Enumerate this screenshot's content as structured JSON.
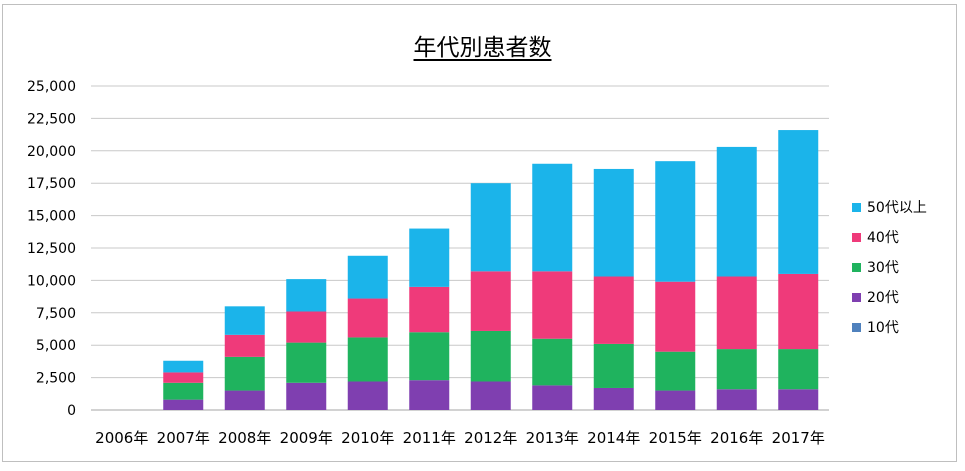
{
  "chart_data": {
    "type": "bar",
    "stacked": true,
    "title": "年代別患者数",
    "xlabel": "",
    "ylabel": "",
    "categories": [
      "2006年",
      "2007年",
      "2008年",
      "2009年",
      "2010年",
      "2011年",
      "2012年",
      "2013年",
      "2014年",
      "2015年",
      "2016年",
      "2017年"
    ],
    "ylim": [
      0,
      25000
    ],
    "yticks": [
      "0",
      "2,500",
      "5,000",
      "7,500",
      "10,000",
      "12,500",
      "15,000",
      "17,500",
      "20,000",
      "22,500",
      "25,000"
    ],
    "grid": true,
    "legend_position": "right",
    "series": [
      {
        "name": "10代",
        "color": "#4f81bd",
        "values": [
          0,
          0,
          0,
          0,
          0,
          0,
          0,
          0,
          0,
          0,
          0,
          0
        ]
      },
      {
        "name": "20代",
        "color": "#7f3fb0",
        "values": [
          0,
          800,
          1500,
          2100,
          2200,
          2300,
          2200,
          1900,
          1700,
          1500,
          1600,
          1600
        ]
      },
      {
        "name": "30代",
        "color": "#1fb35e",
        "values": [
          0,
          1300,
          2600,
          3100,
          3400,
          3700,
          3900,
          3600,
          3400,
          3000,
          3100,
          3100
        ]
      },
      {
        "name": "40代",
        "color": "#ef3a7a",
        "values": [
          0,
          800,
          1700,
          2400,
          3000,
          3500,
          4600,
          5200,
          5200,
          5400,
          5600,
          5800
        ]
      },
      {
        "name": "50代以上",
        "color": "#1bb4ea",
        "values": [
          0,
          900,
          2200,
          2500,
          3300,
          4500,
          6800,
          8300,
          8300,
          9300,
          10000,
          11100
        ]
      }
    ]
  }
}
